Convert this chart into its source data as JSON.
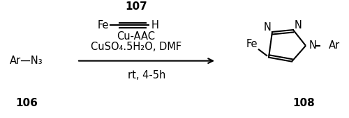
{
  "bg_color": "#ffffff",
  "title_number": "107",
  "reagent_line1_fe": "Fe",
  "reagent_line1_h": "H",
  "reagent_line2": "Cu-AAC",
  "reagent_line3": "CuSO₄.5H₂O, DMF",
  "below_arrow": "rt, 4-5h",
  "left_reactant": "Ar—N₃",
  "left_label": "106",
  "right_label": "108",
  "font_size_main": 10.5,
  "font_size_label": 11,
  "font_size_atom": 10.5
}
